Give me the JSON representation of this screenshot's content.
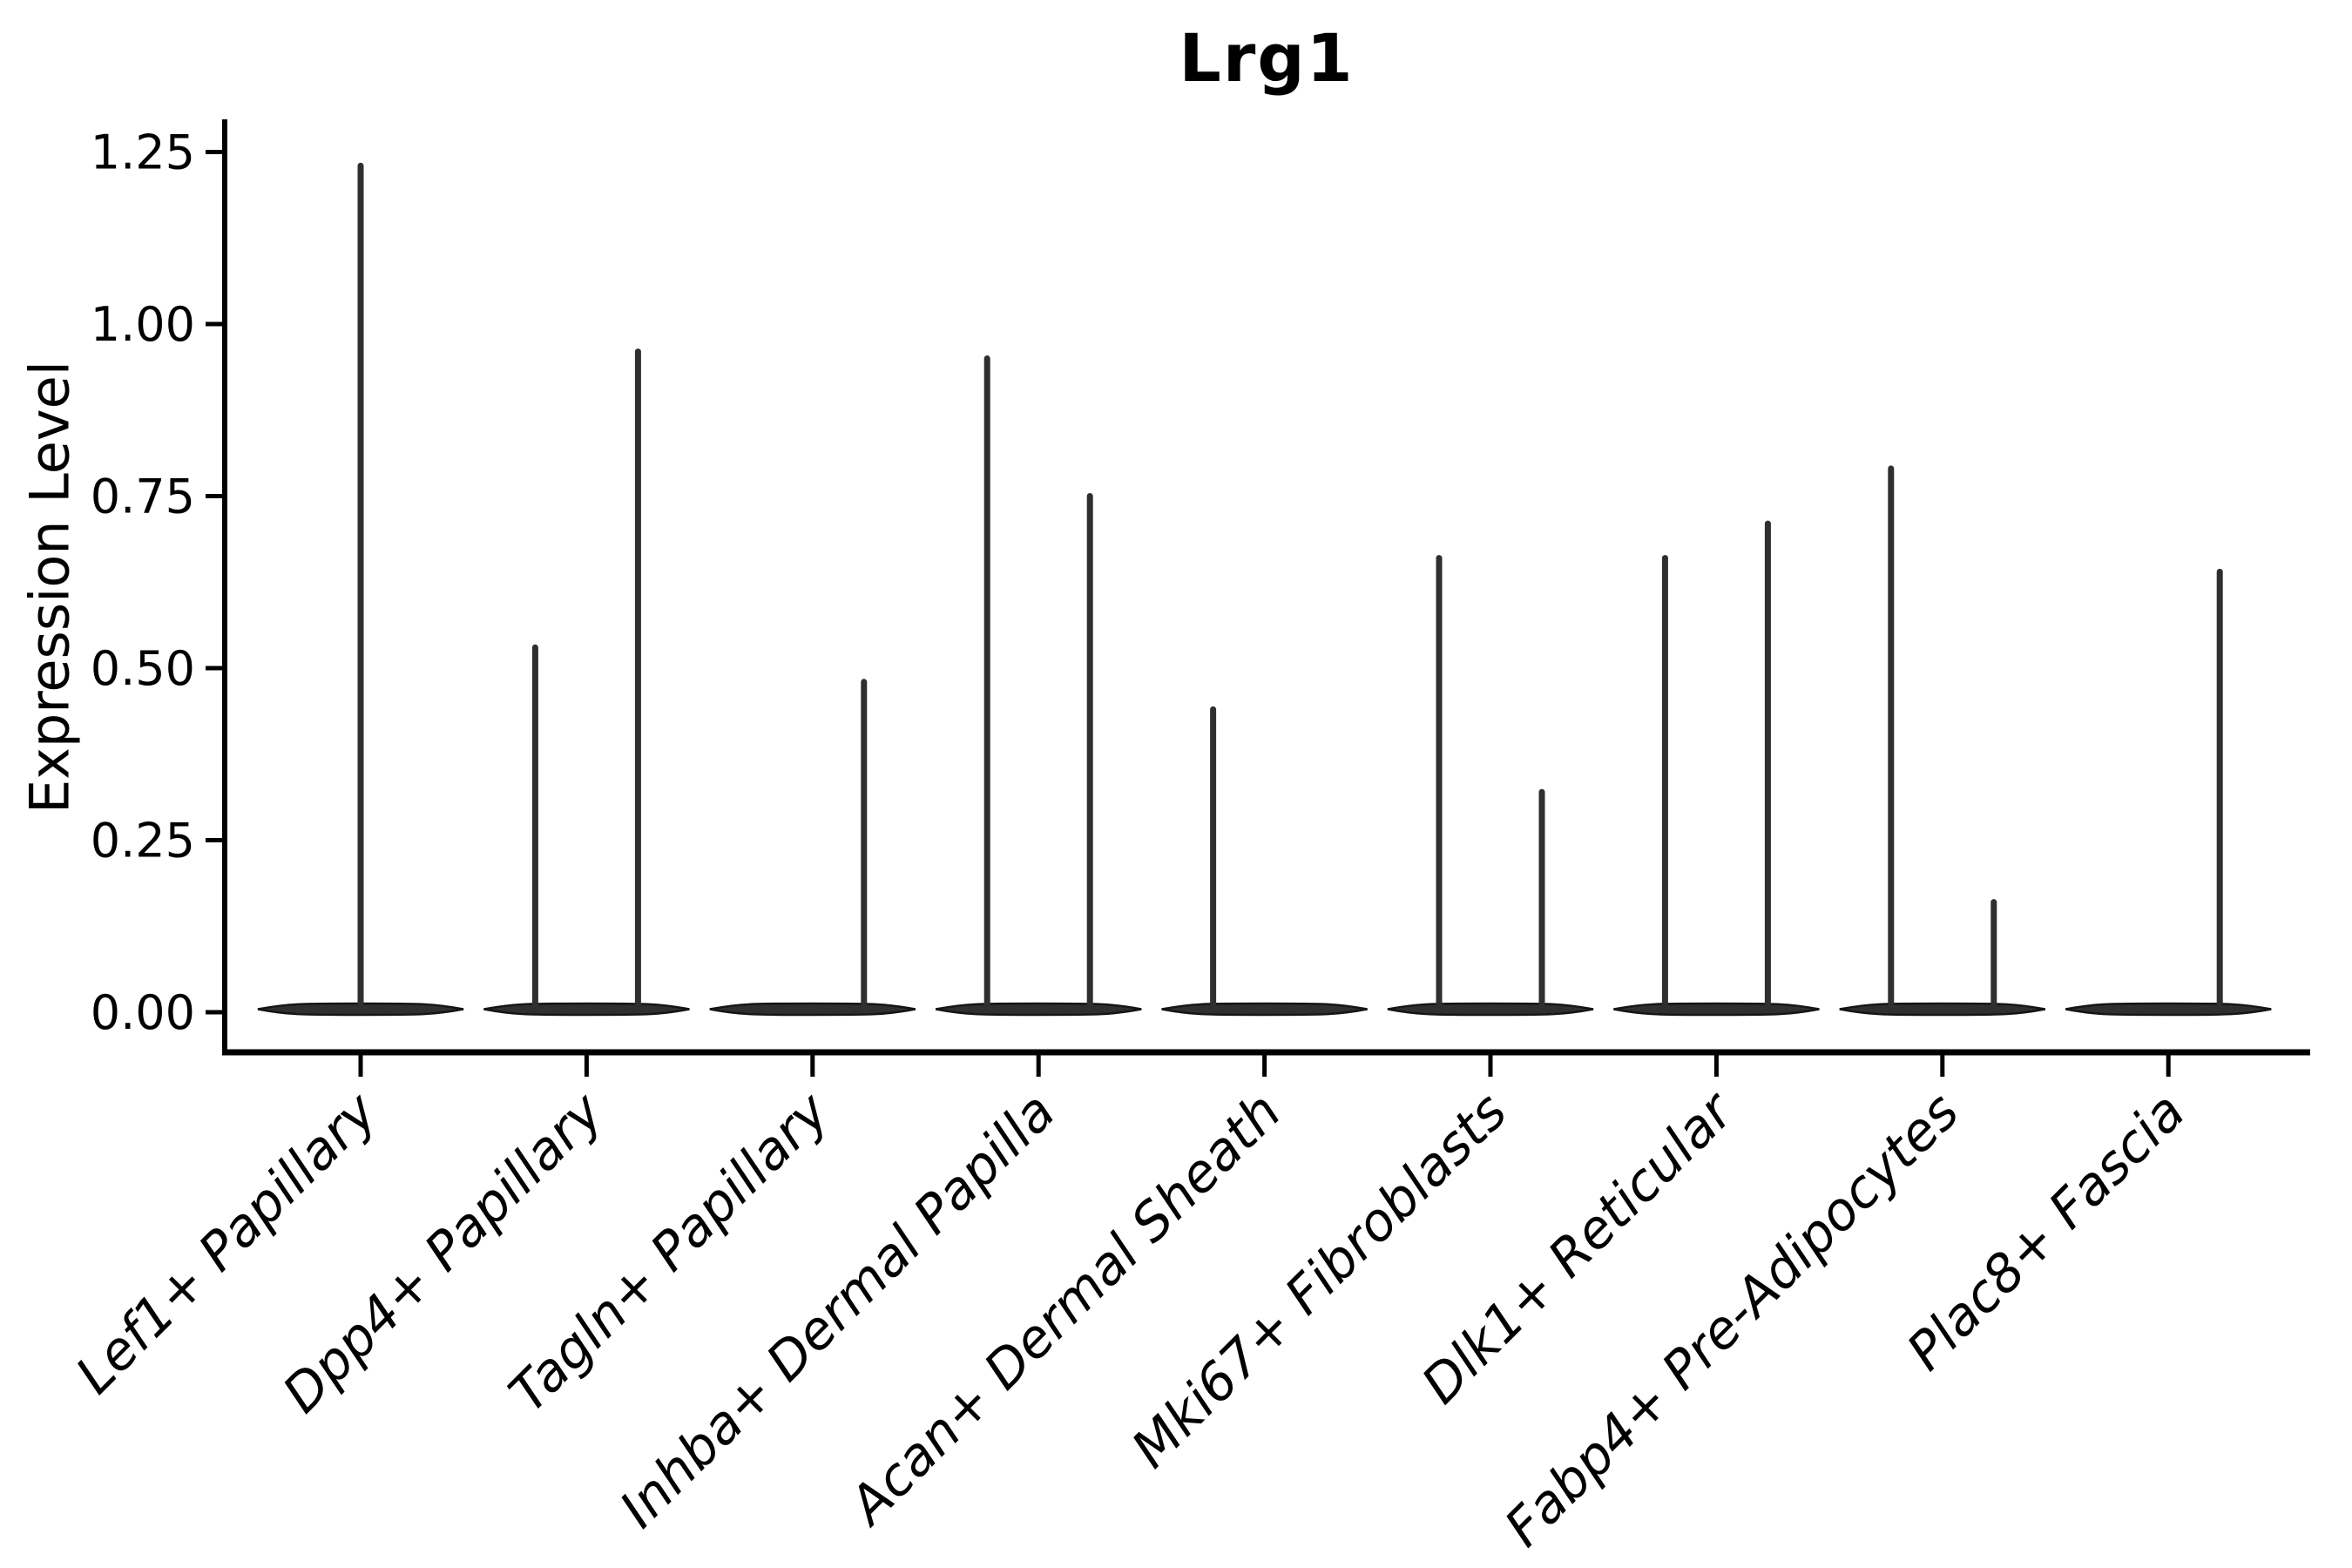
{
  "figure": {
    "title": "Lrg1",
    "ylabel": "Expression Level"
  },
  "chart_data": {
    "type": "violin",
    "title": "Lrg1",
    "xlabel": "",
    "ylabel": "Expression Level",
    "ylim": [
      -0.06,
      1.29
    ],
    "grid": false,
    "legend": null,
    "yticks": [
      0.0,
      0.25,
      0.5,
      0.75,
      1.0,
      1.25
    ],
    "yticklabels": [
      "0.00",
      "0.25",
      "0.50",
      "0.75",
      "1.00",
      "1.25"
    ],
    "categories": [
      "Lef1+ Papillary",
      "Dpp4+ Papillary",
      "Tagln+ Papillary",
      "Inhba+ Dermal Papilla",
      "Acan+ Dermal Sheath",
      "Mki67+ Fibroblasts",
      "Dlk1+ Reticular",
      "Fabp4+ Pre-Adipocytes",
      "Plac8+ Fascia"
    ],
    "violin_style": "flat base at 0 expression with thin vertical stems reaching each group's maximum expression; stems sit at left/right half-slot centers when two groups share a category, centered when one",
    "violins": [
      {
        "category": "Lef1+ Papillary",
        "base_value": 0,
        "spikes": [
          {
            "slot": "center",
            "max_expression": 1.23
          }
        ]
      },
      {
        "category": "Dpp4+ Papillary",
        "base_value": 0,
        "spikes": [
          {
            "slot": "left",
            "max_expression": 0.53
          },
          {
            "slot": "right",
            "max_expression": 0.96
          }
        ]
      },
      {
        "category": "Tagln+ Papillary",
        "base_value": 0,
        "spikes": [
          {
            "slot": "right",
            "max_expression": 0.48
          }
        ]
      },
      {
        "category": "Inhba+ Dermal Papilla",
        "base_value": 0,
        "spikes": [
          {
            "slot": "left",
            "max_expression": 0.95
          },
          {
            "slot": "right",
            "max_expression": 0.75
          }
        ]
      },
      {
        "category": "Acan+ Dermal Sheath",
        "base_value": 0,
        "spikes": [
          {
            "slot": "left",
            "max_expression": 0.44
          }
        ]
      },
      {
        "category": "Mki67+ Fibroblasts",
        "base_value": 0,
        "spikes": [
          {
            "slot": "left",
            "max_expression": 0.66
          },
          {
            "slot": "right",
            "max_expression": 0.32
          }
        ]
      },
      {
        "category": "Dlk1+ Reticular",
        "base_value": 0,
        "spikes": [
          {
            "slot": "left",
            "max_expression": 0.66
          },
          {
            "slot": "right",
            "max_expression": 0.71
          }
        ]
      },
      {
        "category": "Fabp4+ Pre-Adipocytes",
        "base_value": 0,
        "spikes": [
          {
            "slot": "left",
            "max_expression": 0.79
          },
          {
            "slot": "right",
            "max_expression": 0.16
          }
        ]
      },
      {
        "category": "Plac8+ Fascia",
        "base_value": 0,
        "spikes": [
          {
            "slot": "right",
            "max_expression": 0.64
          }
        ]
      }
    ],
    "colors": {
      "violin_fill": "#2f2f2f",
      "violin_edge": "#151515",
      "axis": "#000000",
      "background": "#ffffff"
    }
  }
}
